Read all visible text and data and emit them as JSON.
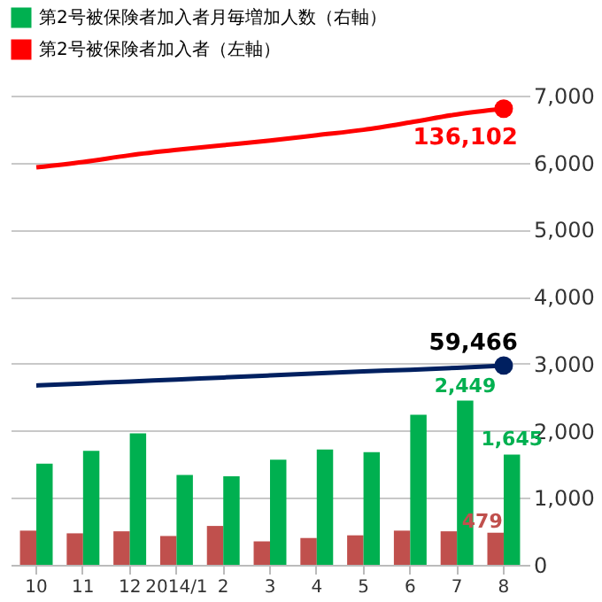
{
  "chart_data": {
    "type": "bar",
    "categories": [
      "10",
      "11",
      "12",
      "2014/1",
      "2",
      "3",
      "4",
      "5",
      "6",
      "7",
      "8"
    ],
    "series": [
      {
        "axis": "y2",
        "color": "#c0504d",
        "values": [
          510,
          470,
          500,
          430,
          580,
          350,
          400,
          440,
          510,
          500,
          479
        ],
        "value_labels": [
          null,
          null,
          null,
          null,
          null,
          null,
          null,
          null,
          null,
          null,
          "479"
        ]
      },
      {
        "axis": "y2",
        "name": "第2号被保険者加入者月毎増加人数（右軸）",
        "color": "#00b050",
        "values": [
          1510,
          1700,
          1960,
          1340,
          1320,
          1570,
          1720,
          1680,
          2240,
          2449,
          1645
        ],
        "value_labels": [
          null,
          null,
          null,
          null,
          null,
          null,
          null,
          null,
          null,
          "2,449",
          "1,645"
        ]
      },
      {
        "type": "line",
        "color": "#002060",
        "values": [
          53500,
          54100,
          54700,
          55300,
          55900,
          56500,
          57100,
          57700,
          58200,
          58800,
          59466
        ],
        "value_labels": [
          null,
          null,
          null,
          null,
          null,
          null,
          null,
          null,
          null,
          null,
          "59,466"
        ]
      },
      {
        "type": "line",
        "name": "第2号被保険者加入者（左軸）",
        "color": "#ff0000",
        "values": [
          118600,
          120200,
          122200,
          123800,
          125200,
          126600,
          128200,
          129800,
          132000,
          134400,
          136102
        ],
        "value_labels": [
          null,
          null,
          null,
          null,
          null,
          null,
          null,
          null,
          null,
          null,
          "136,102"
        ]
      }
    ],
    "ylim": [
      0,
      140000
    ],
    "y2lim": [
      0,
      7000
    ],
    "y2ticks": [
      0,
      {
        "value": 1000,
        "label": "1,000"
      },
      {
        "value": 2000,
        "label": "2,000"
      },
      {
        "value": 3000,
        "label": "3,000"
      },
      {
        "value": 4000,
        "label": "4,000"
      },
      {
        "value": 5000,
        "label": "5,000"
      },
      {
        "value": 6000,
        "label": "6,000"
      },
      {
        "value": 7000,
        "label": "7,000"
      }
    ],
    "grid": "y2",
    "legend": "top"
  }
}
